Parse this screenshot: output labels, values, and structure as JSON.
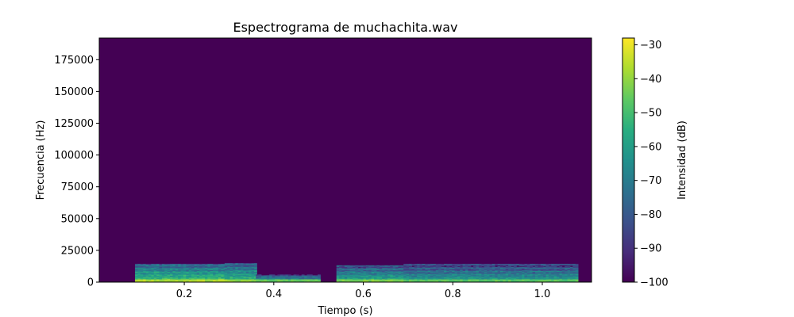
{
  "chart_data": {
    "type": "heatmap",
    "title": "Espectrograma de muchachita.wav",
    "xlabel": "Tiempo (s)",
    "ylabel": "Frecuencia (Hz)",
    "xlim": [
      0.01,
      1.11
    ],
    "ylim": [
      0,
      192000
    ],
    "xticks": [
      0.2,
      0.4,
      0.6,
      0.8,
      1.0
    ],
    "xtick_labels": [
      "0.2",
      "0.4",
      "0.6",
      "0.8",
      "1.0"
    ],
    "yticks": [
      0,
      25000,
      50000,
      75000,
      100000,
      125000,
      150000,
      175000
    ],
    "ytick_labels": [
      "0",
      "25000",
      "50000",
      "75000",
      "100000",
      "125000",
      "150000",
      "175000"
    ],
    "colormap": "viridis",
    "colorbar": {
      "label": "Intensidad (dB)",
      "range": [
        -100,
        -28
      ],
      "ticks": [
        -100,
        -90,
        -80,
        -70,
        -60,
        -50,
        -40,
        -30
      ],
      "tick_labels": [
        "−100",
        "−90",
        "−80",
        "−70",
        "−60",
        "−50",
        "−40",
        "−30"
      ]
    },
    "background_db": -100,
    "segments": [
      {
        "t_start": 0.09,
        "t_end": 0.29,
        "f_max": 14000,
        "peak_db": -32
      },
      {
        "t_start": 0.29,
        "t_end": 0.36,
        "f_max": 15000,
        "peak_db": -35
      },
      {
        "t_start": 0.36,
        "t_end": 0.5,
        "f_max": 6000,
        "peak_db": -40
      },
      {
        "t_start": 0.54,
        "t_end": 0.69,
        "f_max": 13000,
        "peak_db": -38
      },
      {
        "t_start": 0.69,
        "t_end": 1.08,
        "f_max": 14000,
        "peak_db": -42
      }
    ]
  }
}
